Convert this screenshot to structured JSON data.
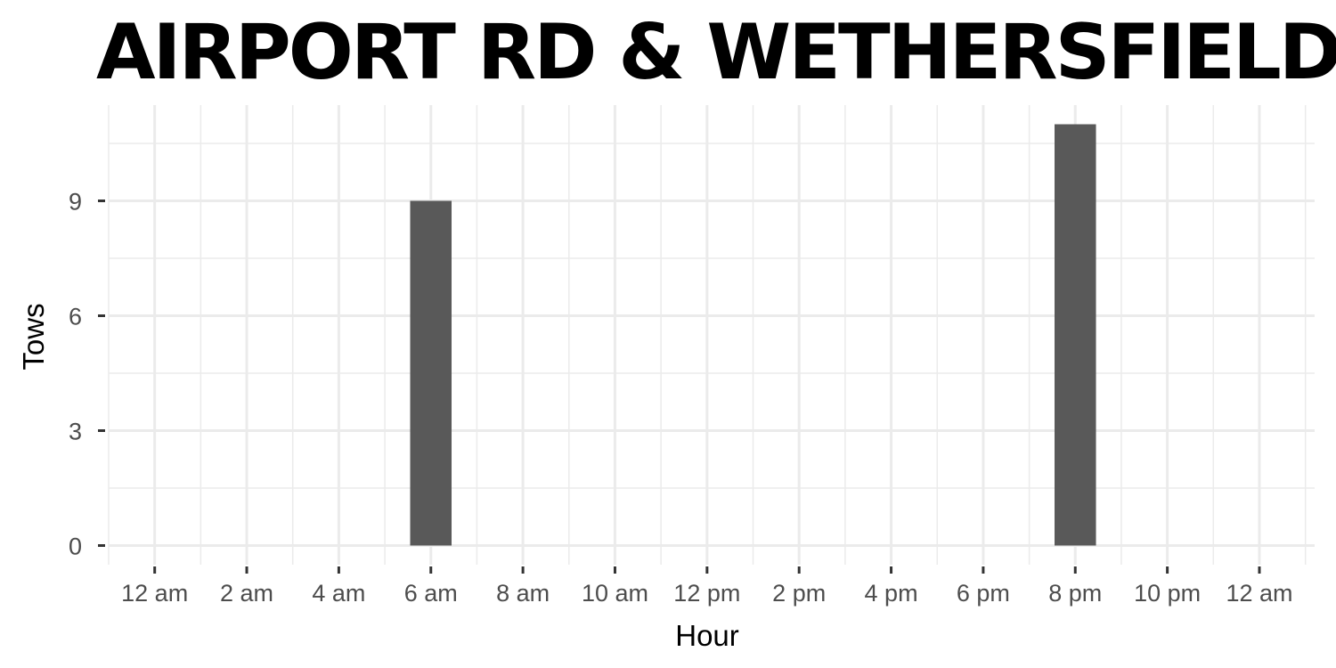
{
  "chart_data": {
    "type": "bar",
    "title": "AIRPORT RD & WETHERSFIELD AVE",
    "xlabel": "Hour",
    "ylabel": "Tows",
    "x_tick_labels": [
      "12 am",
      "2 am",
      "4 am",
      "6 am",
      "8 am",
      "10 am",
      "12 pm",
      "2 pm",
      "4 pm",
      "6 pm",
      "8 pm",
      "10 pm",
      "12 am"
    ],
    "x_tick_hours": [
      0,
      2,
      4,
      6,
      8,
      10,
      12,
      14,
      16,
      18,
      20,
      22,
      24
    ],
    "xlim": [
      -1,
      25.2
    ],
    "y_ticks": [
      0,
      3,
      6,
      9
    ],
    "ylim": [
      -0.5,
      11.5
    ],
    "bars": [
      {
        "hour": 6,
        "value": 9
      },
      {
        "hour": 20,
        "value": 11
      }
    ],
    "bar_color": "#595959",
    "grid": true,
    "legend": "none"
  }
}
